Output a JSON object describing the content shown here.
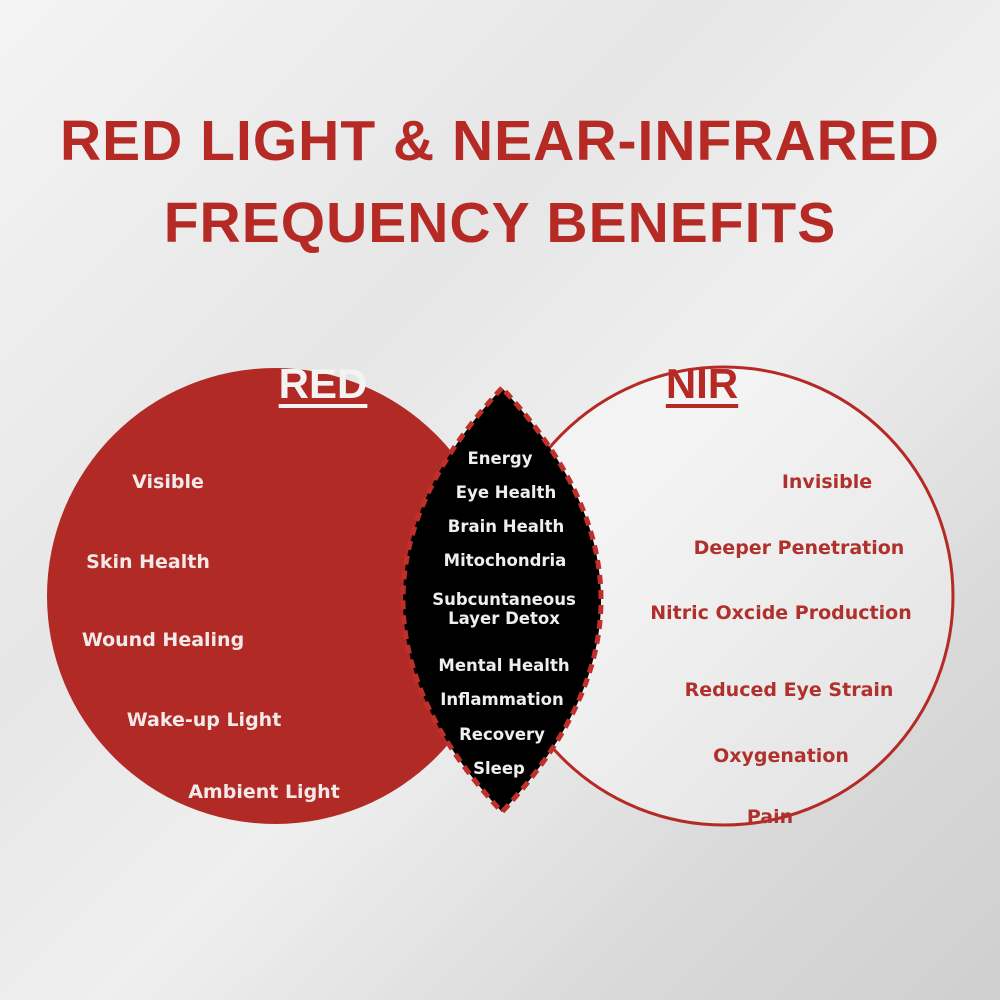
{
  "title": {
    "line1": "RED LIGHT & NEAR-INFRARED",
    "line2": "FREQUENCY BENEFITS"
  },
  "colors": {
    "accent_red": "#b52a25",
    "overlap": "#000000",
    "background": "#e8e8e8"
  },
  "red": {
    "heading": "RED",
    "items": [
      "Visible",
      "Skin Health",
      "Wound Healing",
      "Wake-up Light",
      "Ambient Light"
    ]
  },
  "nir": {
    "heading": "NIR",
    "items": [
      "Invisible",
      "Deeper Penetration",
      "Nitric Oxcide Production",
      "Reduced Eye Strain",
      "Oxygenation",
      "Pain"
    ]
  },
  "both": {
    "items": [
      "Energy",
      "Eye Health",
      "Brain Health",
      "Mitochondria",
      "Subcuntaneous Layer Detox",
      "Mental Health",
      "Inflammation",
      "Recovery",
      "Sleep"
    ]
  }
}
